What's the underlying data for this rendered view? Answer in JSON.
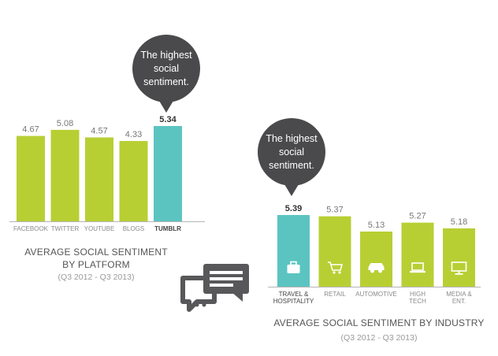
{
  "colors": {
    "bar_green": "#b8cf34",
    "bar_teal": "#5bc4c1",
    "bubble": "#4a4a4c",
    "text": "#666666",
    "text_muted": "#9a9a9a"
  },
  "chart_data": [
    {
      "type": "bar",
      "categories": [
        "FACEBOOK",
        "TWITTER",
        "YOUTUBE",
        "BLOGS",
        "TUMBLR"
      ],
      "values": [
        4.67,
        5.08,
        4.57,
        4.33,
        5.34
      ],
      "value_labels": [
        "4.67",
        "5.08",
        "4.57",
        "4.33",
        "5.34"
      ],
      "highlight_index": 4,
      "title": "AVERAGE SOCIAL SENTIMENT BY PLATFORM",
      "subtitle": "(Q3 2012 - Q3 2013)",
      "annotation": "The highest social sentiment.",
      "xlabel": "",
      "ylabel": "",
      "grid": false
    },
    {
      "type": "bar",
      "categories": [
        "TRAVEL & HOSPITALITY",
        "RETAIL",
        "AUTOMOTIVE",
        "HIGH TECH",
        "MEDIA & ENT."
      ],
      "category_lines": [
        [
          "TRAVEL &",
          "HOSPITALITY"
        ],
        [
          "RETAIL"
        ],
        [
          "AUTOMOTIVE"
        ],
        [
          "HIGH",
          "TECH"
        ],
        [
          "MEDIA &",
          "ENT."
        ]
      ],
      "icons": [
        "briefcase-icon",
        "shopping-cart-icon",
        "car-icon",
        "laptop-icon",
        "monitor-icon"
      ],
      "values": [
        5.39,
        5.37,
        5.13,
        5.27,
        5.18
      ],
      "value_labels": [
        "5.39",
        "5.37",
        "5.13",
        "5.27",
        "5.18"
      ],
      "highlight_index": 0,
      "title": "AVERAGE SOCIAL SENTIMENT BY INDUSTRY",
      "subtitle": "(Q3 2012 - Q3 2013)",
      "annotation": "The highest social sentiment.",
      "xlabel": "",
      "ylabel": "",
      "grid": false
    }
  ],
  "decor": {
    "center_icon": "chat-bubbles-icon"
  }
}
